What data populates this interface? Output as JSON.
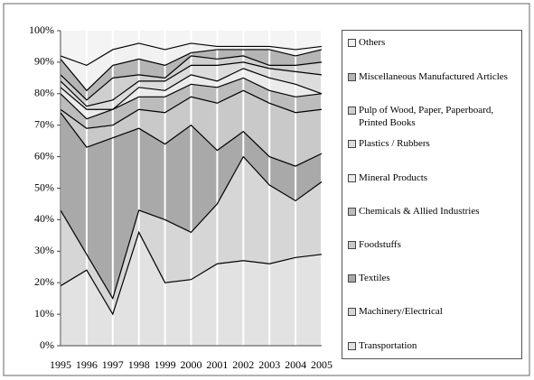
{
  "chart_data": {
    "type": "stacked-area",
    "categories": [
      "1995",
      "1996",
      "1997",
      "1998",
      "1999",
      "2000",
      "2001",
      "2002",
      "2003",
      "2004",
      "2005"
    ],
    "ylim": [
      0,
      100
    ],
    "yticks": [
      {
        "value": 0,
        "label": "0%"
      },
      {
        "value": 10,
        "label": "10%"
      },
      {
        "value": 20,
        "label": "20%"
      },
      {
        "value": 30,
        "label": "30%"
      },
      {
        "value": 40,
        "label": "40%"
      },
      {
        "value": 50,
        "label": "50%"
      },
      {
        "value": 60,
        "label": "60%"
      },
      {
        "value": 70,
        "label": "70%"
      },
      {
        "value": 80,
        "label": "80%"
      },
      {
        "value": 90,
        "label": "90%"
      },
      {
        "value": 100,
        "label": "100%"
      }
    ],
    "legend": "right",
    "series": [
      {
        "name": "Transportation",
        "color": "#e2e2e2",
        "values": [
          19,
          24,
          10,
          36,
          20,
          21,
          26,
          27,
          26,
          28,
          29
        ]
      },
      {
        "name": "Machinery/Electrical",
        "color": "#d6d6d6",
        "values": [
          24,
          5,
          5,
          7,
          20,
          15,
          19,
          33,
          25,
          18,
          23
        ]
      },
      {
        "name": "Textiles",
        "color": "#a9a9a9",
        "values": [
          31,
          34,
          51,
          26,
          24,
          34,
          17,
          8,
          9,
          11,
          9
        ]
      },
      {
        "name": "Foodstuffs",
        "color": "#c9c9c9",
        "values": [
          1,
          6,
          4,
          6,
          10,
          9,
          15,
          13,
          17,
          17,
          14
        ]
      },
      {
        "name": "Chemicals & Allied Industries",
        "color": "#bcbcbc",
        "values": [
          5,
          3,
          5,
          4,
          5,
          4,
          5,
          4,
          4,
          5,
          5
        ]
      },
      {
        "name": "Mineral Products",
        "color": "#ebebeb",
        "values": [
          2,
          3,
          0,
          3,
          2,
          3,
          2,
          3,
          4,
          4,
          0
        ]
      },
      {
        "name": "Plastics / Rubbers",
        "color": "#dcdcdc",
        "values": [
          2,
          1,
          3,
          2,
          3,
          3,
          5,
          2,
          3,
          4,
          6
        ]
      },
      {
        "name": "Pulp of Wood, Paper, Paperboard, Printed Books",
        "color": "#cfcfcf",
        "values": [
          2,
          2,
          7,
          2,
          1,
          3,
          2,
          2,
          1,
          2,
          4
        ]
      },
      {
        "name": "Miscellaneous Manufactured Articles",
        "color": "#b5b5b5",
        "values": [
          5,
          3,
          4,
          5,
          4,
          1,
          3,
          2,
          5,
          3,
          4
        ]
      },
      {
        "name": "Others",
        "color": "#f1f1f1",
        "values": [
          1,
          8,
          5,
          5,
          5,
          3,
          1,
          1,
          1,
          2,
          1
        ]
      }
    ]
  }
}
